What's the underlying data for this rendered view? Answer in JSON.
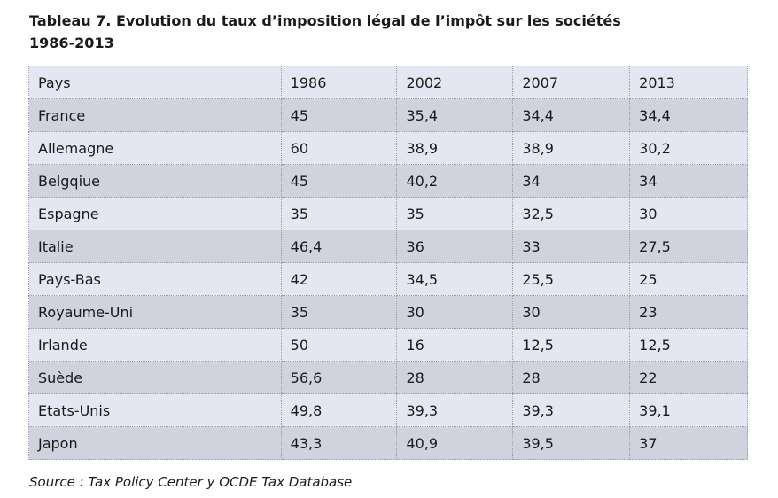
{
  "title": {
    "line1": "Tableau 7. Evolution du taux d’imposition légal de l’impôt sur les sociétés",
    "line2": "1986-2013"
  },
  "table": {
    "headers": [
      "Pays",
      "1986",
      "2002",
      "2007",
      "2013"
    ],
    "rows": [
      [
        "France",
        "45",
        "35,4",
        "34,4",
        "34,4"
      ],
      [
        "Allemagne",
        "60",
        "38,9",
        "38,9",
        "30,2"
      ],
      [
        "Belgqiue",
        "45",
        "40,2",
        "34",
        "34"
      ],
      [
        "Espagne",
        "35",
        "35",
        "32,5",
        "30"
      ],
      [
        "Italie",
        "46,4",
        "36",
        "33",
        "27,5"
      ],
      [
        "Pays-Bas",
        "42",
        "34,5",
        "25,5",
        "25"
      ],
      [
        "Royaume-Uni",
        "35",
        "30",
        "30",
        "23"
      ],
      [
        "Irlande",
        "50",
        "16",
        "12,5",
        "12,5"
      ],
      [
        "Suède",
        "56,6",
        "28",
        "28",
        "22"
      ],
      [
        "Etats-Unis",
        "49,8",
        "39,3",
        "39,3",
        "39,1"
      ],
      [
        "Japon",
        "43,3",
        "40,9",
        "39,5",
        "37"
      ]
    ]
  },
  "source": "Source : Tax Policy Center y OCDE Tax Database",
  "colors": {
    "row_light": "#e4e6f1",
    "row_dark": "#d0d2dd",
    "border": "#9a9aa8"
  }
}
